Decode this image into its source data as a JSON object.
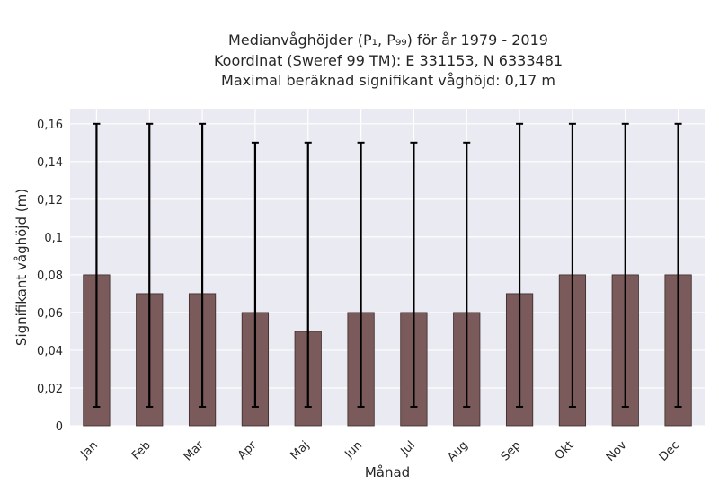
{
  "chart_data": {
    "type": "bar",
    "title_lines": [
      "Medianvåghöjder (P₁, P₉₉) för år 1979 - 2019",
      "Koordinat (Sweref 99 TM): E 331153, N 6333481",
      "Maximal beräknad signifikant våghöjd: 0,17 m"
    ],
    "xlabel": "Månad",
    "ylabel": "Signifikant våghöjd (m)",
    "categories": [
      "Jan",
      "Feb",
      "Mar",
      "Apr",
      "Maj",
      "Jun",
      "Jul",
      "Aug",
      "Sep",
      "Okt",
      "Nov",
      "Dec"
    ],
    "values": [
      0.08,
      0.07,
      0.07,
      0.06,
      0.05,
      0.06,
      0.06,
      0.06,
      0.07,
      0.08,
      0.08,
      0.08
    ],
    "error_low": [
      0.01,
      0.01,
      0.01,
      0.01,
      0.01,
      0.01,
      0.01,
      0.01,
      0.01,
      0.01,
      0.01,
      0.01
    ],
    "error_high": [
      0.16,
      0.16,
      0.16,
      0.15,
      0.15,
      0.15,
      0.15,
      0.15,
      0.16,
      0.16,
      0.16,
      0.16
    ],
    "ylim": [
      0,
      0.168
    ],
    "yticks": [
      0,
      0.02,
      0.04,
      0.06,
      0.08,
      0.1,
      0.12,
      0.14,
      0.16
    ],
    "ytick_labels": [
      "0",
      "0,02",
      "0,04",
      "0,06",
      "0,08",
      "0,1",
      "0,12",
      "0,14",
      "0,16"
    ],
    "grid": true,
    "colors": {
      "bar": "#7a5a5a",
      "bar_edge": "#3a2a2a",
      "error": "#000000",
      "plot_bg": "#eaeaf2",
      "grid": "#ffffff"
    }
  }
}
